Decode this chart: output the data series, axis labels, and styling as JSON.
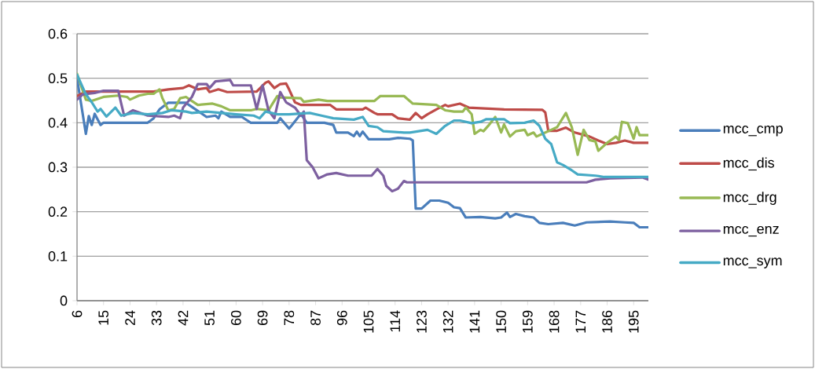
{
  "chart_data": {
    "type": "line",
    "xlim": [
      6,
      200
    ],
    "xticks": [
      6,
      15,
      24,
      33,
      42,
      51,
      60,
      69,
      78,
      87,
      96,
      105,
      114,
      123,
      132,
      141,
      150,
      159,
      168,
      177,
      186,
      195
    ],
    "ylim": [
      0,
      0.6
    ],
    "yticks": [
      0,
      0.1,
      0.2,
      0.3,
      0.4,
      0.5,
      0.6
    ],
    "grid": "y",
    "legend": "right",
    "line_style": "solid",
    "series": [
      {
        "name": "mcc_cmp",
        "color": "#4a7ebb",
        "x": [
          6,
          9,
          10,
          11,
          12,
          14,
          15,
          30,
          32,
          34,
          37,
          43,
          44,
          50,
          53,
          54,
          55,
          58,
          62,
          65,
          74,
          75,
          78,
          79,
          82,
          84,
          90,
          93,
          94,
          98,
          100,
          101,
          102,
          103,
          105,
          112,
          115,
          119,
          120,
          121,
          123,
          126,
          129,
          132,
          134,
          136,
          138,
          143,
          148,
          150,
          152,
          153,
          155,
          158,
          161,
          163,
          166,
          171,
          175,
          179,
          187,
          192,
          195,
          197,
          200
        ],
        "values": [
          0.5,
          0.375,
          0.415,
          0.395,
          0.42,
          0.395,
          0.4,
          0.4,
          0.41,
          0.43,
          0.445,
          0.445,
          0.44,
          0.413,
          0.416,
          0.41,
          0.425,
          0.413,
          0.413,
          0.4,
          0.4,
          0.41,
          0.387,
          0.395,
          0.42,
          0.4,
          0.4,
          0.395,
          0.378,
          0.378,
          0.37,
          0.38,
          0.37,
          0.38,
          0.363,
          0.363,
          0.366,
          0.364,
          0.36,
          0.207,
          0.207,
          0.225,
          0.225,
          0.22,
          0.21,
          0.208,
          0.187,
          0.188,
          0.185,
          0.187,
          0.198,
          0.188,
          0.195,
          0.19,
          0.187,
          0.175,
          0.172,
          0.175,
          0.169,
          0.176,
          0.178,
          0.176,
          0.175,
          0.165,
          0.165
        ]
      },
      {
        "name": "mcc_dis",
        "color": "#be4b48",
        "x": [
          6,
          9,
          32,
          37,
          42,
          44,
          47,
          50,
          51,
          54,
          57,
          67,
          70,
          71,
          73,
          75,
          77,
          78,
          80,
          82,
          92,
          94,
          103,
          104,
          107,
          108,
          113,
          115,
          119,
          121,
          123,
          125,
          128,
          131,
          132,
          136,
          139,
          151,
          164,
          165,
          166,
          169,
          172,
          175,
          180,
          183,
          186,
          189,
          192,
          195,
          200
        ],
        "values": [
          0.46,
          0.47,
          0.47,
          0.475,
          0.478,
          0.484,
          0.475,
          0.478,
          0.469,
          0.475,
          0.469,
          0.47,
          0.49,
          0.493,
          0.478,
          0.487,
          0.488,
          0.475,
          0.446,
          0.44,
          0.44,
          0.43,
          0.43,
          0.434,
          0.422,
          0.419,
          0.419,
          0.41,
          0.407,
          0.422,
          0.41,
          0.419,
          0.43,
          0.44,
          0.437,
          0.443,
          0.434,
          0.43,
          0.429,
          0.423,
          0.382,
          0.382,
          0.389,
          0.378,
          0.369,
          0.36,
          0.352,
          0.355,
          0.36,
          0.355,
          0.355
        ]
      },
      {
        "name": "mcc_drg",
        "color": "#98b954",
        "x": [
          6,
          9,
          11,
          15,
          20,
          23,
          24,
          27,
          30,
          32,
          34,
          35,
          37,
          39,
          41,
          43,
          45,
          47,
          52,
          55,
          58,
          65,
          67,
          71,
          74,
          75,
          82,
          83,
          88,
          91,
          107,
          109,
          117,
          120,
          128,
          131,
          134,
          137,
          138,
          140,
          141,
          143,
          144,
          146,
          148,
          150,
          151,
          153,
          155,
          158,
          159,
          161,
          162,
          164,
          167,
          169,
          172,
          174,
          176,
          178,
          180,
          182,
          183,
          186,
          189,
          190,
          191,
          193,
          195,
          196,
          197,
          200
        ],
        "values": [
          0.51,
          0.452,
          0.449,
          0.458,
          0.461,
          0.458,
          0.452,
          0.461,
          0.465,
          0.465,
          0.475,
          0.455,
          0.428,
          0.431,
          0.455,
          0.458,
          0.449,
          0.44,
          0.443,
          0.437,
          0.428,
          0.428,
          0.431,
          0.428,
          0.46,
          0.457,
          0.455,
          0.447,
          0.452,
          0.449,
          0.449,
          0.46,
          0.46,
          0.443,
          0.44,
          0.428,
          0.425,
          0.425,
          0.434,
          0.419,
          0.375,
          0.384,
          0.381,
          0.396,
          0.413,
          0.378,
          0.396,
          0.369,
          0.381,
          0.384,
          0.372,
          0.378,
          0.369,
          0.375,
          0.384,
          0.39,
          0.422,
          0.39,
          0.328,
          0.384,
          0.361,
          0.358,
          0.337,
          0.355,
          0.369,
          0.361,
          0.402,
          0.399,
          0.364,
          0.39,
          0.372,
          0.372
        ]
      },
      {
        "name": "mcc_enz",
        "color": "#7d60a0",
        "x": [
          6,
          8,
          12,
          15,
          20,
          21,
          22,
          25,
          30,
          37,
          39,
          41,
          42,
          45,
          47,
          50,
          51,
          53,
          58,
          59,
          65,
          67,
          69,
          71,
          73,
          75,
          77,
          80,
          82,
          83,
          84,
          86,
          88,
          91,
          94,
          98,
          106,
          108,
          110,
          111,
          113,
          115,
          117,
          118,
          179,
          182,
          187,
          198,
          200
        ],
        "values": [
          0.452,
          0.464,
          0.467,
          0.472,
          0.472,
          0.443,
          0.416,
          0.428,
          0.416,
          0.413,
          0.416,
          0.41,
          0.434,
          0.458,
          0.487,
          0.487,
          0.478,
          0.493,
          0.496,
          0.484,
          0.484,
          0.431,
          0.484,
          0.428,
          0.41,
          0.469,
          0.446,
          0.434,
          0.416,
          0.425,
          0.316,
          0.3,
          0.275,
          0.284,
          0.287,
          0.281,
          0.281,
          0.296,
          0.281,
          0.258,
          0.246,
          0.252,
          0.269,
          0.266,
          0.266,
          0.272,
          0.275,
          0.277,
          0.272
        ]
      },
      {
        "name": "mcc_sym",
        "color": "#46aac5",
        "x": [
          6,
          9,
          11,
          13,
          14,
          16,
          19,
          21,
          25,
          30,
          35,
          38,
          43,
          45,
          50,
          55,
          60,
          66,
          68,
          70,
          74,
          78,
          85,
          89,
          93,
          100,
          103,
          105,
          108,
          110,
          117,
          119,
          125,
          128,
          131,
          134,
          136,
          140,
          143,
          145,
          151,
          153,
          158,
          161,
          163,
          165,
          167,
          169,
          171,
          174,
          176,
          182,
          185,
          200
        ],
        "values": [
          0.508,
          0.464,
          0.446,
          0.425,
          0.431,
          0.414,
          0.434,
          0.416,
          0.422,
          0.419,
          0.422,
          0.428,
          0.425,
          0.422,
          0.425,
          0.422,
          0.419,
          0.416,
          0.41,
          0.425,
          0.419,
          0.419,
          0.422,
          0.416,
          0.41,
          0.407,
          0.413,
          0.393,
          0.39,
          0.381,
          0.378,
          0.378,
          0.384,
          0.375,
          0.393,
          0.405,
          0.405,
          0.399,
          0.402,
          0.408,
          0.408,
          0.399,
          0.4,
          0.405,
          0.393,
          0.364,
          0.352,
          0.311,
          0.305,
          0.293,
          0.284,
          0.281,
          0.278,
          0.278
        ]
      }
    ]
  }
}
